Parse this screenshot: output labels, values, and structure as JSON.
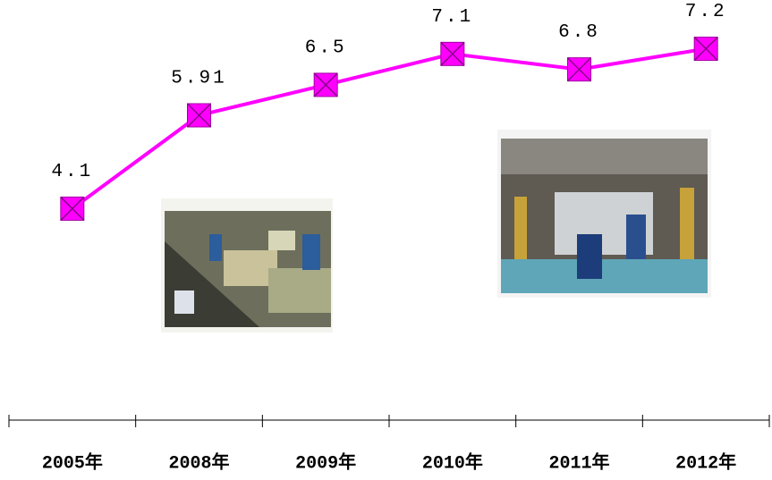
{
  "chart_data": {
    "type": "line",
    "categories": [
      "2005年",
      "2008年",
      "2009年",
      "2010年",
      "2011年",
      "2012年"
    ],
    "values": [
      4.1,
      5.91,
      6.5,
      7.1,
      6.8,
      7.2
    ],
    "color": "#ff00ff",
    "ylim": [
      0,
      8
    ]
  }
}
